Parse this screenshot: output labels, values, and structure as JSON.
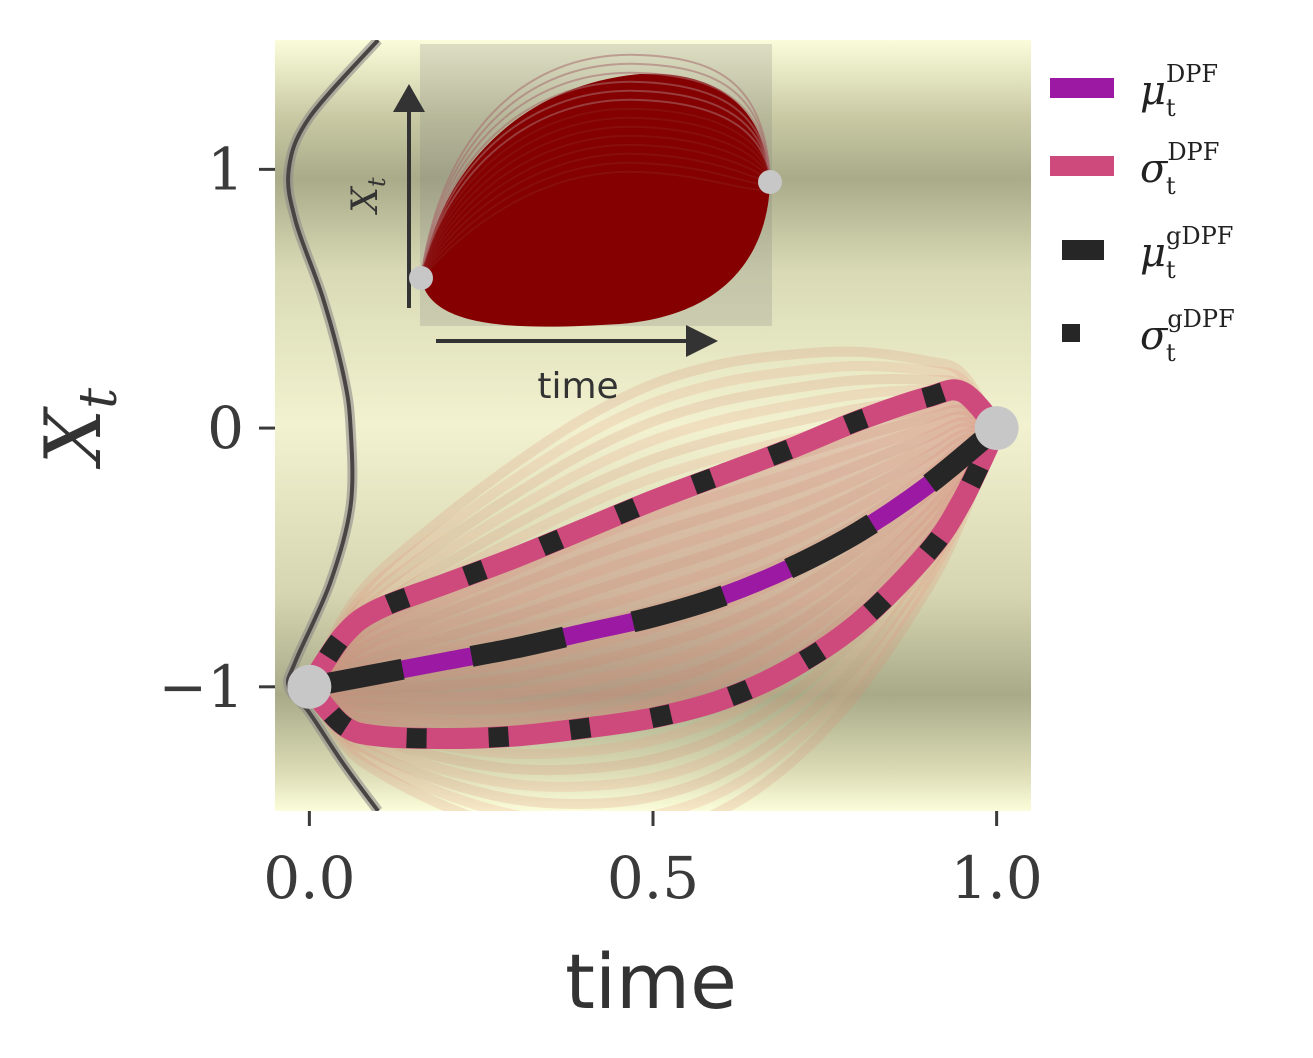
{
  "chart_data": {
    "type": "line",
    "xlabel": "time",
    "ylabel": "X",
    "ylabel_sub": "t",
    "xlim": [
      -0.05,
      1.05
    ],
    "ylim": [
      -1.48,
      1.5
    ],
    "xticks": [
      0.0,
      0.5,
      1.0
    ],
    "xtick_labels": [
      "0.0",
      "0.5",
      "1.0"
    ],
    "yticks": [
      -1,
      0,
      1
    ],
    "ytick_labels": [
      "−1",
      "0",
      "1"
    ],
    "endpoints": [
      {
        "x": 0.0,
        "y": -1.0
      },
      {
        "x": 1.0,
        "y": 0.0
      }
    ],
    "series": [
      {
        "name": "μ",
        "sup": "DPF",
        "sub": "t",
        "color": "#9c1aa3",
        "style": "solid",
        "x": [
          0.0,
          0.1,
          0.2,
          0.3,
          0.4,
          0.5,
          0.6,
          0.7,
          0.8,
          0.9,
          1.0
        ],
        "y": [
          -1.0,
          -0.95,
          -0.9,
          -0.85,
          -0.79,
          -0.73,
          -0.65,
          -0.54,
          -0.4,
          -0.22,
          0.0
        ]
      },
      {
        "name": "σ",
        "sup": "DPF",
        "sub": "t",
        "color": "#cf4a7c",
        "style": "solid",
        "upper": {
          "x": [
            0.0,
            0.05,
            0.1,
            0.2,
            0.3,
            0.4,
            0.5,
            0.6,
            0.7,
            0.8,
            0.9,
            0.95,
            1.0
          ],
          "y": [
            -1.0,
            -0.8,
            -0.7,
            -0.6,
            -0.5,
            -0.39,
            -0.28,
            -0.18,
            -0.08,
            0.03,
            0.12,
            0.14,
            0.0
          ]
        },
        "lower": {
          "x": [
            0.0,
            0.05,
            0.1,
            0.2,
            0.3,
            0.4,
            0.5,
            0.6,
            0.7,
            0.8,
            0.9,
            0.95,
            1.0
          ],
          "y": [
            -1.0,
            -1.15,
            -1.19,
            -1.2,
            -1.19,
            -1.16,
            -1.12,
            -1.05,
            -0.93,
            -0.75,
            -0.48,
            -0.28,
            0.0
          ]
        }
      },
      {
        "name": "μ",
        "sup": "gDPF",
        "sub": "t",
        "color": "#262626",
        "style": "dashed"
      },
      {
        "name": "σ",
        "sup": "gDPF",
        "sub": "t",
        "color": "#262626",
        "style": "dotted"
      }
    ],
    "marginal_density": {
      "y": [
        -1.48,
        -1.3,
        -1.1,
        -1.0,
        -0.9,
        -0.6,
        -0.3,
        0.0,
        0.2,
        0.5,
        0.8,
        1.0,
        1.2,
        1.5
      ],
      "x": [
        0.1,
        0.05,
        0.0,
        -0.03,
        -0.02,
        0.03,
        0.06,
        0.06,
        0.05,
        0.02,
        -0.02,
        -0.03,
        -0.0,
        0.1
      ]
    },
    "inset": {
      "xlabel": "time",
      "ylabel": "X",
      "ylabel_sub": "t"
    }
  }
}
